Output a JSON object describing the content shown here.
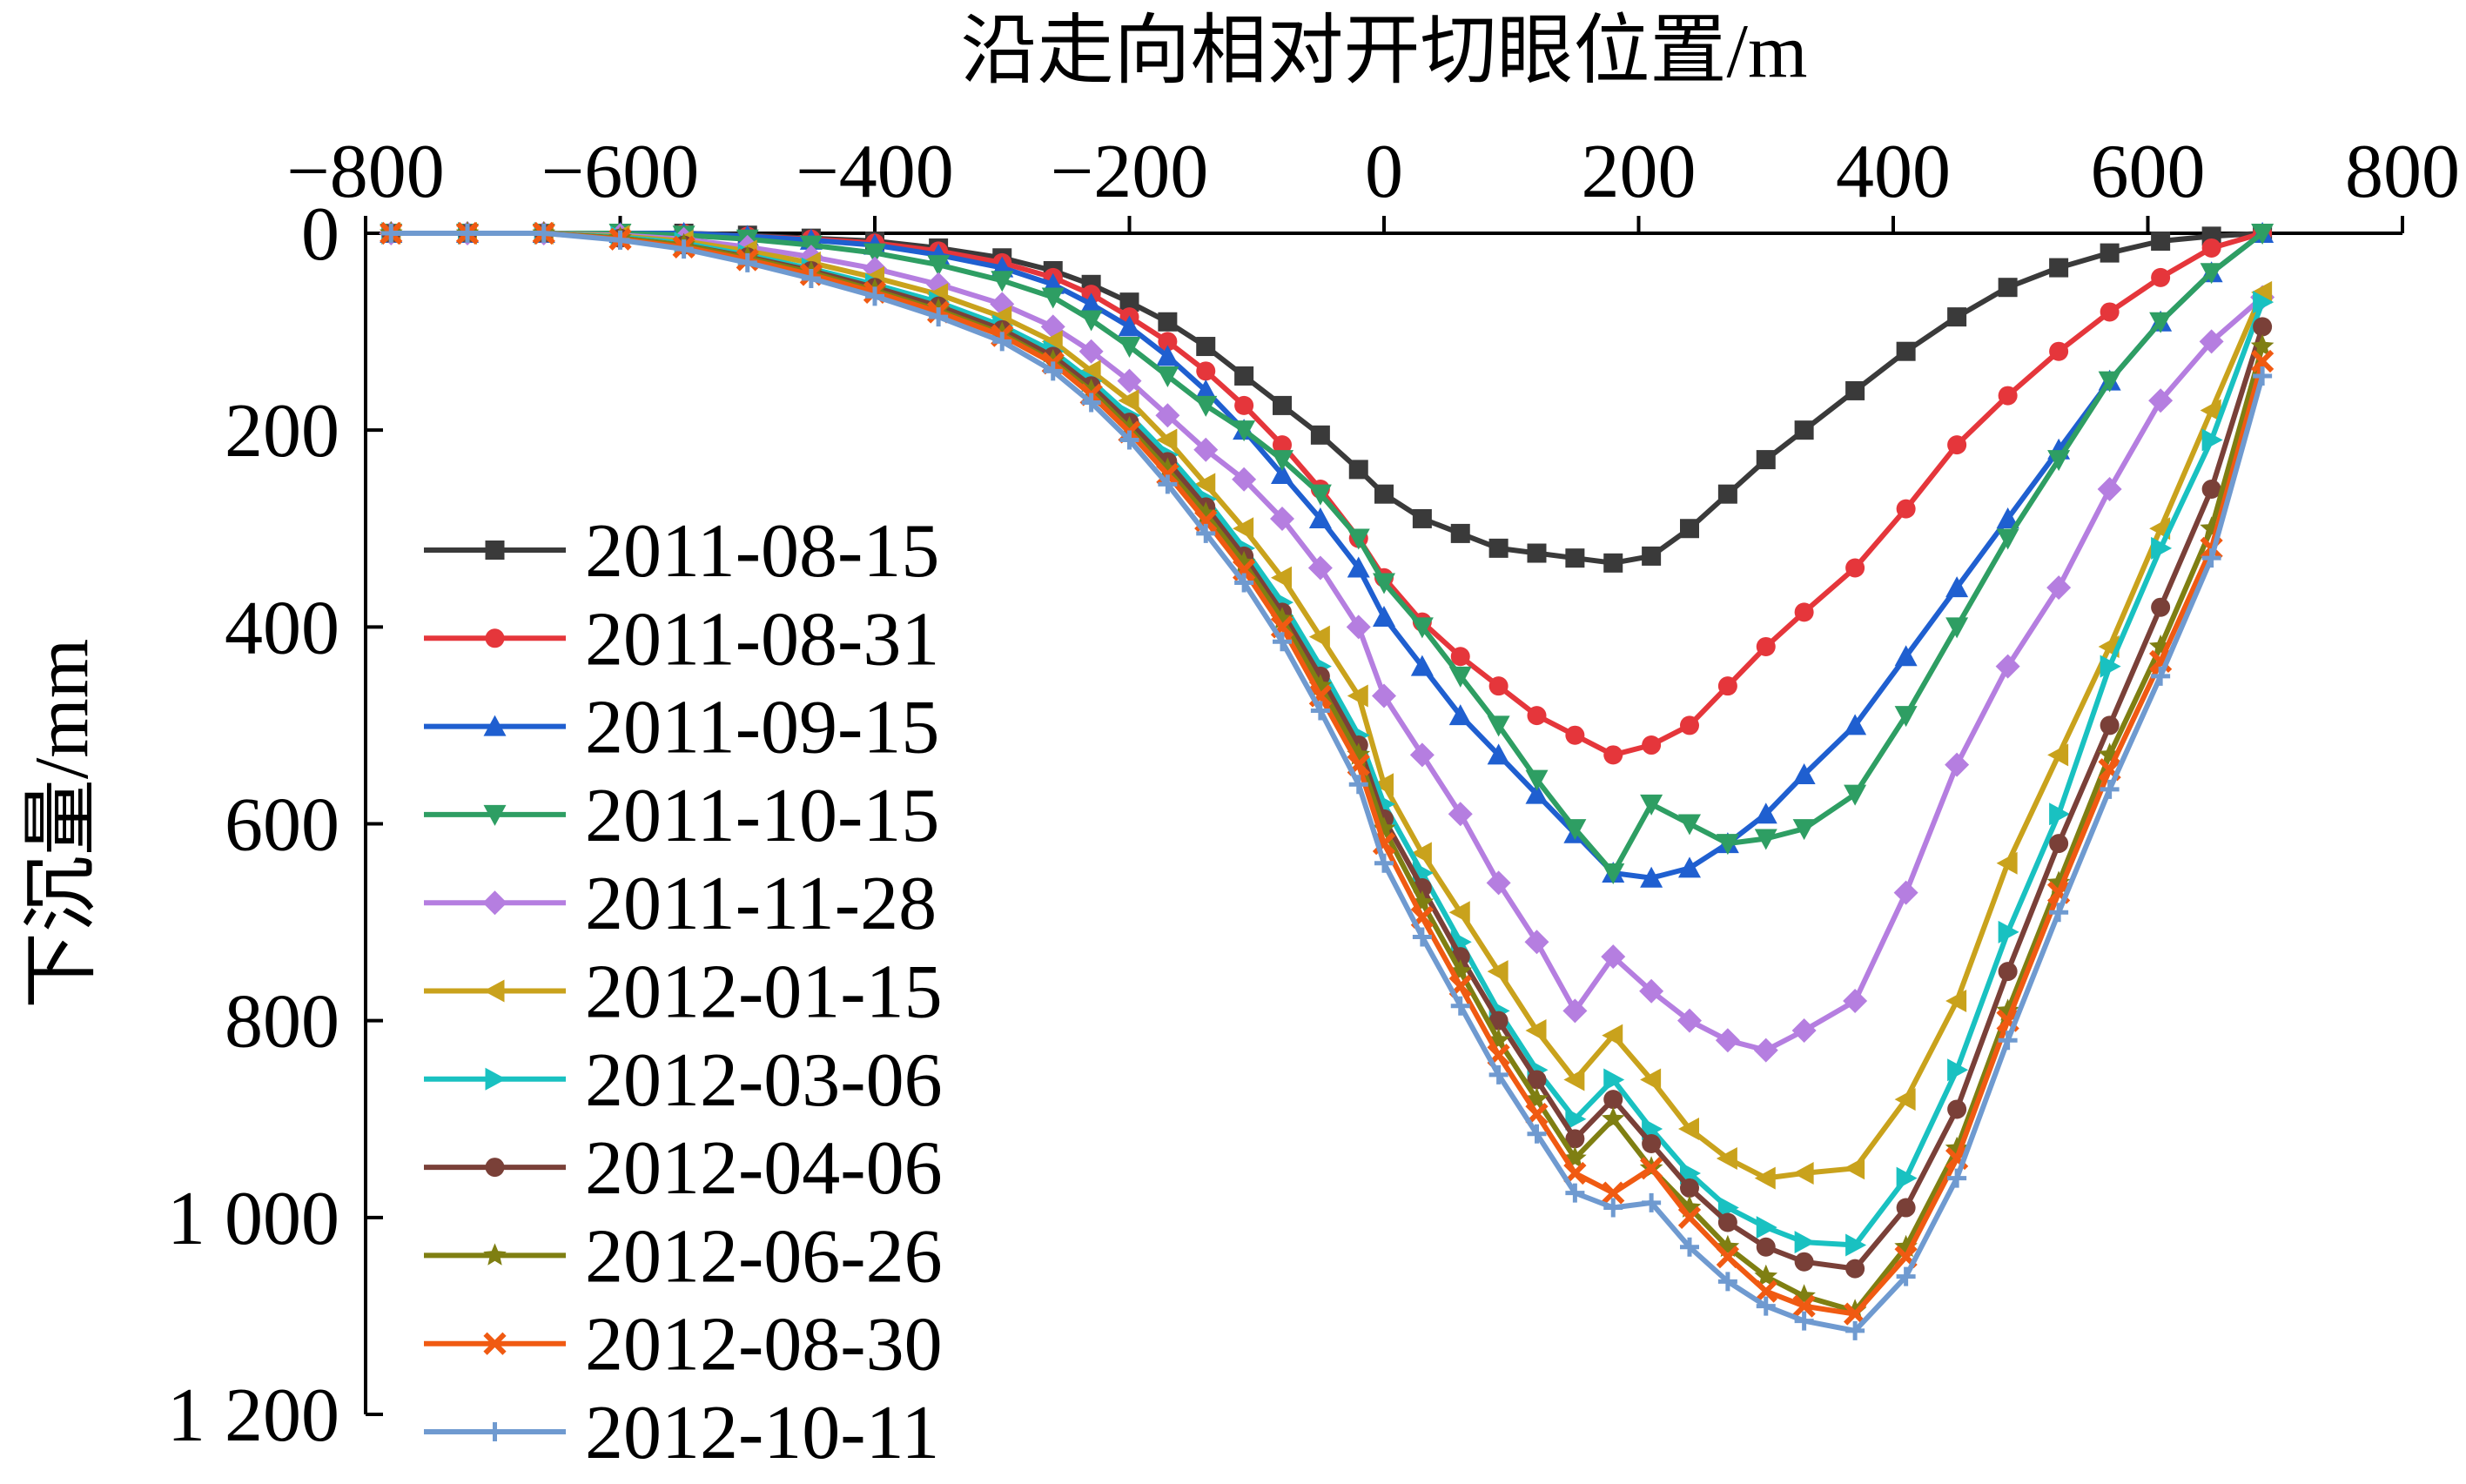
{
  "chart_data": {
    "type": "line",
    "xlabel": "沿走向相对开切眼位置/m",
    "ylabel": "下沉量/mm",
    "xlim": [
      -800,
      800
    ],
    "ylim": [
      0,
      1200
    ],
    "y_inverted": true,
    "x_axis_position": "top",
    "x_ticks": [
      -800,
      -600,
      -400,
      -200,
      0,
      200,
      400,
      600,
      800
    ],
    "x_tick_labels": [
      "−800",
      "−600",
      "−400",
      "−200",
      "0",
      "200",
      "400",
      "600",
      "800"
    ],
    "y_ticks": [
      0,
      200,
      400,
      600,
      800,
      1000,
      1200
    ],
    "y_tick_labels": [
      "0",
      "200",
      "400",
      "600",
      "800",
      "1 000",
      "1 200"
    ],
    "legend_position": "left-inside",
    "x": [
      -780,
      -720,
      -660,
      -600,
      -550,
      -500,
      -450,
      -400,
      -350,
      -300,
      -260,
      -230,
      -200,
      -170,
      -140,
      -110,
      -80,
      -50,
      -20,
      0,
      30,
      60,
      90,
      120,
      150,
      180,
      210,
      240,
      270,
      300,
      330,
      370,
      410,
      450,
      490,
      530,
      570,
      610,
      650,
      690
    ],
    "series": [
      {
        "name": "2011-08-15",
        "color": "#3a3a3a",
        "marker": "square",
        "values": [
          0,
          0,
          0,
          0,
          0,
          2,
          5,
          8,
          15,
          25,
          38,
          52,
          70,
          90,
          115,
          145,
          175,
          205,
          240,
          265,
          290,
          305,
          320,
          325,
          330,
          335,
          328,
          300,
          265,
          230,
          200,
          160,
          120,
          85,
          55,
          35,
          20,
          8,
          3,
          0
        ]
      },
      {
        "name": "2011-08-31",
        "color": "#e5363b",
        "marker": "circle",
        "values": [
          0,
          0,
          0,
          0,
          0,
          3,
          6,
          10,
          18,
          30,
          45,
          62,
          85,
          110,
          140,
          175,
          215,
          260,
          310,
          350,
          395,
          430,
          460,
          490,
          510,
          530,
          520,
          500,
          460,
          420,
          385,
          340,
          280,
          215,
          165,
          120,
          80,
          45,
          15,
          0
        ]
      },
      {
        "name": "2011-09-15",
        "color": "#1f5fd0",
        "marker": "triangle-up",
        "values": [
          0,
          0,
          0,
          0,
          0,
          3,
          7,
          12,
          22,
          35,
          52,
          72,
          95,
          125,
          160,
          200,
          245,
          290,
          340,
          390,
          440,
          490,
          530,
          570,
          610,
          650,
          655,
          645,
          620,
          590,
          550,
          500,
          430,
          360,
          290,
          220,
          150,
          90,
          40,
          0
        ]
      },
      {
        "name": "2011-10-15",
        "color": "#2e9e63",
        "marker": "triangle-down",
        "values": [
          0,
          0,
          0,
          0,
          2,
          6,
          12,
          20,
          32,
          48,
          65,
          88,
          115,
          145,
          175,
          200,
          230,
          265,
          310,
          355,
          400,
          450,
          500,
          555,
          605,
          650,
          580,
          600,
          620,
          615,
          605,
          570,
          490,
          400,
          310,
          230,
          150,
          90,
          40,
          0
        ]
      },
      {
        "name": "2011-11-28",
        "color": "#b57ee0",
        "marker": "diamond",
        "values": [
          0,
          0,
          0,
          2,
          6,
          14,
          24,
          36,
          52,
          72,
          95,
          120,
          150,
          185,
          220,
          250,
          290,
          340,
          400,
          470,
          530,
          590,
          660,
          720,
          790,
          735,
          770,
          800,
          820,
          830,
          810,
          780,
          670,
          540,
          440,
          360,
          260,
          170,
          110,
          65
        ]
      },
      {
        "name": "2012-01-15",
        "color": "#c9a21c",
        "marker": "triangle-left",
        "values": [
          0,
          0,
          0,
          3,
          8,
          18,
          30,
          45,
          62,
          85,
          110,
          140,
          170,
          210,
          255,
          300,
          350,
          410,
          470,
          560,
          630,
          690,
          750,
          810,
          860,
          815,
          860,
          910,
          940,
          960,
          955,
          950,
          880,
          780,
          640,
          530,
          420,
          300,
          180,
          60
        ]
      },
      {
        "name": "2012-03-06",
        "color": "#19c1c1",
        "marker": "triangle-right",
        "values": [
          0,
          0,
          0,
          4,
          10,
          22,
          36,
          52,
          70,
          94,
          120,
          150,
          185,
          225,
          270,
          320,
          375,
          440,
          510,
          580,
          650,
          720,
          790,
          850,
          900,
          860,
          910,
          955,
          990,
          1010,
          1025,
          1028,
          960,
          850,
          710,
          590,
          440,
          320,
          210,
          70
        ]
      },
      {
        "name": "2012-04-06",
        "color": "#7a4038",
        "marker": "circle",
        "values": [
          0,
          0,
          0,
          5,
          12,
          24,
          38,
          55,
          74,
          98,
          125,
          155,
          192,
          232,
          278,
          328,
          385,
          450,
          520,
          595,
          665,
          735,
          800,
          860,
          920,
          880,
          925,
          970,
          1005,
          1030,
          1045,
          1052,
          990,
          890,
          750,
          620,
          500,
          380,
          260,
          95
        ]
      },
      {
        "name": "2012-06-26",
        "color": "#7f7f12",
        "marker": "star",
        "values": [
          0,
          0,
          0,
          5,
          12,
          25,
          40,
          58,
          78,
          102,
          130,
          160,
          198,
          240,
          285,
          335,
          392,
          460,
          530,
          605,
          680,
          750,
          820,
          880,
          940,
          900,
          950,
          990,
          1030,
          1060,
          1080,
          1095,
          1030,
          930,
          790,
          660,
          530,
          420,
          300,
          115
        ]
      },
      {
        "name": "2012-08-30",
        "color": "#f05a12",
        "marker": "x",
        "values": [
          0,
          0,
          0,
          6,
          14,
          27,
          42,
          60,
          80,
          104,
          132,
          164,
          202,
          245,
          292,
          342,
          400,
          470,
          540,
          620,
          695,
          765,
          835,
          895,
          955,
          975,
          950,
          1000,
          1040,
          1075,
          1090,
          1098,
          1040,
          940,
          800,
          670,
          545,
          435,
          320,
          130
        ]
      },
      {
        "name": "2012-10-11",
        "color": "#6f9ad0",
        "marker": "plus",
        "values": [
          0,
          0,
          0,
          7,
          16,
          30,
          46,
          64,
          85,
          110,
          140,
          172,
          210,
          255,
          305,
          355,
          415,
          485,
          560,
          640,
          715,
          785,
          855,
          915,
          975,
          990,
          985,
          1030,
          1065,
          1090,
          1105,
          1115,
          1060,
          960,
          820,
          690,
          565,
          450,
          330,
          145
        ]
      }
    ]
  }
}
